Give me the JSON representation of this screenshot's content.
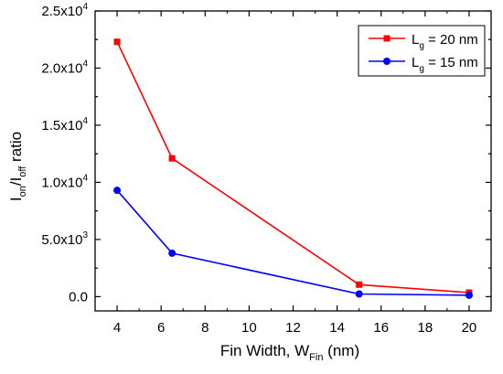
{
  "chart_data": {
    "type": "line",
    "xlabel": {
      "main": "Fin Width, W",
      "sub": "Fin",
      "tail": " (nm)"
    },
    "ylabel": {
      "p1": "I",
      "s1": "on",
      "p2": "/I",
      "s2": "off",
      "p3": " ratio"
    },
    "xlim": [
      3,
      21
    ],
    "ylim": [
      -1250,
      25000
    ],
    "xticks": [
      {
        "value": 4,
        "label": "4"
      },
      {
        "value": 6,
        "label": "6"
      },
      {
        "value": 8,
        "label": "8"
      },
      {
        "value": 10,
        "label": "10"
      },
      {
        "value": 12,
        "label": "12"
      },
      {
        "value": 14,
        "label": "14"
      },
      {
        "value": 16,
        "label": "16"
      },
      {
        "value": 18,
        "label": "18"
      },
      {
        "value": 20,
        "label": "20"
      }
    ],
    "yticks": [
      {
        "value": 0,
        "base": "0.0",
        "exp": ""
      },
      {
        "value": 5000,
        "base": "5.0x10",
        "exp": "3"
      },
      {
        "value": 10000,
        "base": "1.0x10",
        "exp": "4"
      },
      {
        "value": 15000,
        "base": "1.5x10",
        "exp": "4"
      },
      {
        "value": 20000,
        "base": "2.0x10",
        "exp": "4"
      },
      {
        "value": 25000,
        "base": "2.5x10",
        "exp": "4"
      }
    ],
    "series": [
      {
        "name": {
          "pre": "L",
          "sub": "g",
          "post": " = 20 nm"
        },
        "color": "#ff0000",
        "marker": "square",
        "x": [
          4,
          6.5,
          15,
          20
        ],
        "y": [
          22300,
          12100,
          1050,
          350
        ]
      },
      {
        "name": {
          "pre": "L",
          "sub": "g",
          "post": " = 15 nm"
        },
        "color": "#0000ff",
        "marker": "circle",
        "x": [
          4,
          6.5,
          15,
          20
        ],
        "y": [
          9300,
          3800,
          230,
          120
        ]
      }
    ],
    "grid": false,
    "legend_position": "top-right"
  }
}
